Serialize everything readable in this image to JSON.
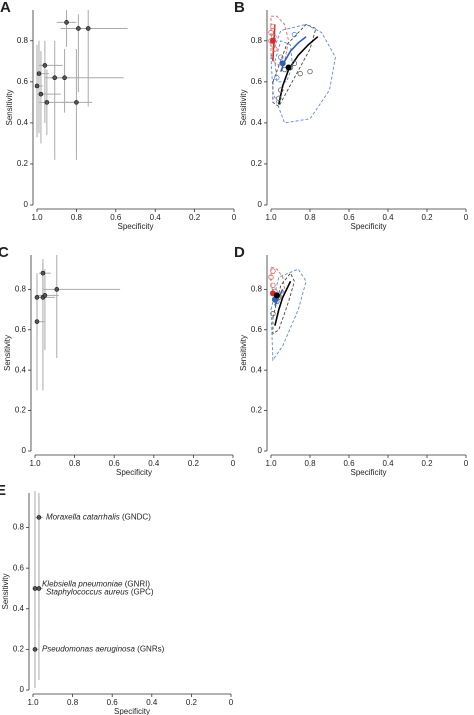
{
  "chart_data": [
    {
      "type": "scatter",
      "label": "A",
      "xlabel": "Specificity",
      "ylabel": "Sensitivity",
      "xlim": [
        1,
        0
      ],
      "ylim": [
        0,
        0.95
      ],
      "xticks": [
        {
          "value": 1,
          "label": "1.0"
        },
        0.8,
        0.6,
        0.4,
        0.2,
        0
      ],
      "yticks": [
        0,
        0.2,
        0.4,
        0.6,
        0.8
      ],
      "color": "#555555",
      "ci_color": "#aaaaaa",
      "x": [
        0.85,
        0.79,
        0.74,
        0.96,
        0.99,
        0.91,
        0.86,
        1.0,
        0.98,
        0.95,
        0.8
      ],
      "values": [
        0.89,
        0.86,
        0.86,
        0.68,
        0.64,
        0.62,
        0.62,
        0.58,
        0.54,
        0.5,
        0.5
      ],
      "sens_ci_low": [
        0.77,
        0.55,
        0.48,
        0.4,
        0.35,
        0.22,
        0.45,
        0.33,
        0.3,
        0.34,
        0.22
      ],
      "sens_ci_high": [
        0.95,
        0.93,
        0.95,
        0.8,
        0.8,
        0.8,
        0.76,
        0.78,
        0.75,
        0.66,
        0.76
      ],
      "spec_ci_low": [
        0.8,
        0.7,
        0.54,
        0.87,
        0.94,
        0.83,
        0.56,
        0.97,
        0.88,
        0.8,
        0.72
      ],
      "spec_ci_high": [
        0.9,
        0.86,
        0.88,
        0.99,
        1.0,
        0.96,
        0.93,
        1.0,
        1.0,
        0.99,
        0.87
      ]
    },
    {
      "type": "sroc",
      "label": "B",
      "xlabel": "Specificity",
      "ylabel": "Sensitivity",
      "xlim": [
        1,
        0
      ],
      "ylim": [
        0,
        0.95
      ],
      "xticks": [
        {
          "value": 1,
          "label": "1.0"
        },
        0.8,
        0.6,
        0.4,
        0.2,
        0
      ],
      "yticks": [
        0,
        0.2,
        0.4,
        0.6,
        0.8
      ],
      "series": [
        {
          "kind": "region",
          "color": "#e06666",
          "x": [
            1.0,
            0.97,
            0.93,
            0.91,
            0.93,
            0.97,
            1.0,
            1.0
          ],
          "values": [
            0.92,
            0.92,
            0.88,
            0.8,
            0.7,
            0.68,
            0.72,
            0.85
          ]
        },
        {
          "kind": "region",
          "color": "#444444",
          "x": [
            0.99,
            0.92,
            0.82,
            0.77,
            0.8,
            0.88,
            0.96,
            0.99
          ],
          "values": [
            0.6,
            0.78,
            0.88,
            0.86,
            0.76,
            0.62,
            0.48,
            0.5
          ]
        },
        {
          "kind": "region",
          "color": "#5b8bd6",
          "x": [
            1.0,
            0.95,
            0.82,
            0.74,
            0.67,
            0.7,
            0.8,
            0.93,
            0.99
          ],
          "values": [
            0.72,
            0.85,
            0.88,
            0.84,
            0.72,
            0.56,
            0.42,
            0.4,
            0.55
          ]
        },
        {
          "kind": "region",
          "color": "#5b8bd6",
          "x": [
            0.98,
            0.95,
            0.9,
            0.89,
            0.92,
            0.97
          ],
          "values": [
            0.7,
            0.8,
            0.78,
            0.68,
            0.6,
            0.6
          ]
        },
        {
          "kind": "curve",
          "color": "#000000",
          "x": [
            0.96,
            0.94,
            0.91,
            0.86,
            0.81,
            0.76
          ],
          "values": [
            0.49,
            0.58,
            0.66,
            0.73,
            0.78,
            0.82
          ]
        },
        {
          "kind": "curve",
          "color": "#2c5fb8",
          "x": [
            0.95,
            0.93,
            0.9,
            0.86,
            0.82
          ],
          "values": [
            0.65,
            0.7,
            0.75,
            0.79,
            0.82
          ]
        },
        {
          "kind": "curve",
          "color": "#d62c2c",
          "x": [
            0.99,
            0.985,
            0.98
          ],
          "values": [
            0.7,
            0.8,
            0.88
          ]
        },
        {
          "kind": "points",
          "color": "#e06666",
          "x": [
            1.0,
            0.99,
            0.985,
            0.98,
            1.0,
            0.99
          ],
          "values": [
            0.8,
            0.78,
            0.82,
            0.76,
            0.84,
            0.87
          ]
        },
        {
          "kind": "points",
          "color": "#5b8bd6",
          "x": [
            0.97,
            0.95,
            0.88
          ],
          "values": [
            0.62,
            0.72,
            0.83
          ]
        },
        {
          "kind": "points",
          "color": "#666666",
          "x": [
            0.93,
            0.9,
            0.88,
            0.85,
            0.8,
            0.95,
            0.96
          ],
          "values": [
            0.66,
            0.67,
            0.69,
            0.64,
            0.65,
            0.56,
            0.52
          ]
        },
        {
          "kind": "summary",
          "color": "#d62c2c",
          "x": [
            0.99
          ],
          "values": [
            0.8
          ]
        },
        {
          "kind": "summary",
          "color": "#2c5fb8",
          "x": [
            0.94
          ],
          "values": [
            0.69
          ]
        },
        {
          "kind": "summary",
          "color": "#000000",
          "x": [
            0.91
          ],
          "values": [
            0.67
          ]
        }
      ]
    },
    {
      "type": "scatter",
      "label": "C",
      "xlabel": "Specificity",
      "ylabel": "Sensitivity",
      "xlim": [
        1,
        0
      ],
      "ylim": [
        0,
        0.97
      ],
      "xticks": [
        {
          "value": 1,
          "label": "1.0"
        },
        0.8,
        0.6,
        0.4,
        0.2,
        0
      ],
      "yticks": [
        0,
        0.2,
        0.4,
        0.6,
        0.8
      ],
      "color": "#555555",
      "ci_color": "#aaaaaa",
      "x": [
        0.96,
        0.96,
        0.95,
        0.89,
        0.99,
        0.99
      ],
      "values": [
        0.88,
        0.76,
        0.77,
        0.8,
        0.76,
        0.64
      ],
      "sens_ci_low": [
        0.75,
        0.3,
        0.5,
        0.46,
        0.55,
        0.3
      ],
      "sens_ci_high": [
        0.95,
        0.93,
        0.9,
        0.97,
        0.88,
        0.85
      ],
      "spec_ci_low": [
        0.92,
        0.9,
        0.88,
        0.57,
        0.95,
        0.95
      ],
      "spec_ci_high": [
        0.98,
        0.99,
        0.99,
        0.96,
        1.0,
        1.0
      ]
    },
    {
      "type": "sroc",
      "label": "D",
      "xlabel": "Specificity",
      "ylabel": "Sensitivity",
      "xlim": [
        1,
        0
      ],
      "ylim": [
        0,
        0.97
      ],
      "xticks": [
        {
          "value": 1,
          "label": "1.0"
        },
        0.8,
        0.6,
        0.4,
        0.2,
        0
      ],
      "yticks": [
        0,
        0.2,
        0.4,
        0.6,
        0.8
      ],
      "series": [
        {
          "kind": "region",
          "color": "#e06666",
          "x": [
            1.0,
            0.97,
            0.94,
            0.93,
            0.95,
            0.98,
            1.0
          ],
          "values": [
            0.91,
            0.9,
            0.86,
            0.8,
            0.76,
            0.76,
            0.82
          ]
        },
        {
          "kind": "region",
          "color": "#444444",
          "x": [
            0.99,
            0.95,
            0.9,
            0.88,
            0.91,
            0.96,
            0.99
          ],
          "values": [
            0.66,
            0.82,
            0.88,
            0.84,
            0.74,
            0.6,
            0.58
          ]
        },
        {
          "kind": "region",
          "color": "#5b8bd6",
          "x": [
            1.0,
            0.96,
            0.86,
            0.82,
            0.86,
            0.94,
            0.99
          ],
          "values": [
            0.7,
            0.86,
            0.9,
            0.84,
            0.7,
            0.52,
            0.45
          ]
        },
        {
          "kind": "curve",
          "color": "#000000",
          "x": [
            0.98,
            0.96,
            0.94,
            0.92,
            0.9
          ],
          "values": [
            0.62,
            0.7,
            0.76,
            0.8,
            0.84
          ]
        },
        {
          "kind": "curve",
          "color": "#2c5fb8",
          "x": [
            0.98,
            0.96,
            0.94
          ],
          "values": [
            0.72,
            0.76,
            0.8
          ]
        },
        {
          "kind": "points",
          "color": "#e06666",
          "x": [
            1.0,
            0.99,
            0.98,
            0.99
          ],
          "values": [
            0.86,
            0.82,
            0.79,
            0.89
          ]
        },
        {
          "kind": "points",
          "color": "#666666",
          "x": [
            0.99,
            0.97,
            0.96
          ],
          "values": [
            0.68,
            0.74,
            0.76
          ]
        },
        {
          "kind": "summary",
          "color": "#d62c2c",
          "x": [
            0.99
          ],
          "values": [
            0.78
          ]
        },
        {
          "kind": "summary",
          "color": "#2c5fb8",
          "x": [
            0.98
          ],
          "values": [
            0.75
          ]
        },
        {
          "kind": "summary",
          "color": "#000000",
          "x": [
            0.97
          ],
          "values": [
            0.77
          ]
        }
      ]
    },
    {
      "type": "scatter",
      "label": "E",
      "xlabel": "Specificity",
      "ylabel": "Sensitivity",
      "xlim": [
        1,
        0
      ],
      "ylim": [
        0,
        0.97
      ],
      "xticks": [
        {
          "value": 1,
          "label": "1.0"
        },
        0.8,
        0.6,
        0.4,
        0.2,
        0
      ],
      "yticks": [
        0,
        0.2,
        0.4,
        0.6,
        0.8
      ],
      "color": "#555555",
      "ci_color": "#aaaaaa",
      "x": [
        0.97,
        0.99,
        0.97,
        0.99
      ],
      "values": [
        0.85,
        0.5,
        0.5,
        0.2
      ],
      "sens_ci_low": [
        0.3,
        0.02,
        0.05,
        0.01
      ],
      "sens_ci_high": [
        0.97,
        0.98,
        0.95,
        0.63
      ],
      "spec_ci_low": [
        0.95,
        0.97,
        0.95,
        0.97
      ],
      "spec_ci_high": [
        0.99,
        1.0,
        0.99,
        1.0
      ],
      "point_labels": [
        [
          "Moraxella catarrhalis",
          "(GNDC)"
        ],
        [
          "Klebsiella pneumoniae",
          "(GNRI)"
        ],
        [
          "Staphylococcus aureus",
          "(GPC)"
        ],
        [
          "Pseudomonas aeruginosa",
          "(GNRs)"
        ]
      ]
    }
  ]
}
